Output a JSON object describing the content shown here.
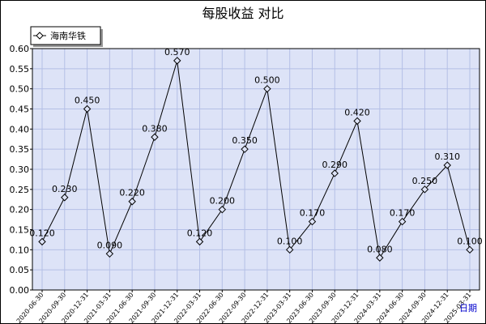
{
  "chart_data": {
    "type": "line",
    "title": "每股收益 对比",
    "xlabel": "日期",
    "ylabel": "",
    "ylim": [
      0,
      0.6
    ],
    "ytick_step": 0.05,
    "grid": true,
    "legend_position": "top-left",
    "categories": [
      "2020-06-30",
      "2020-09-30",
      "2020-12-31",
      "2021-03-31",
      "2021-06-30",
      "2021-09-30",
      "2021-12-31",
      "2022-03-31",
      "2022-06-30",
      "2022-09-30",
      "2022-12-31",
      "2023-03-31",
      "2023-06-30",
      "2023-09-30",
      "2023-12-31",
      "2024-03-31",
      "2024-06-30",
      "2024-09-30",
      "2024-12-31",
      "2025-03-31"
    ],
    "series": [
      {
        "name": "海南华铁",
        "values": [
          0.12,
          0.23,
          0.45,
          0.09,
          0.22,
          0.38,
          0.57,
          0.12,
          0.2,
          0.35,
          0.5,
          0.1,
          0.17,
          0.29,
          0.42,
          0.08,
          0.17,
          0.25,
          0.31,
          0.1
        ],
        "labels": [
          "0.120",
          "0.230",
          "0.450",
          "0.090",
          "0.220",
          "0.380",
          "0.570",
          "0.120",
          "0.200",
          "0.350",
          "0.500",
          "0.100",
          "0.170",
          "0.290",
          "0.420",
          "0.080",
          "0.170",
          "0.250",
          "0.310",
          "0.100"
        ]
      }
    ],
    "colors": {
      "plot_bg": "#dde3f7",
      "grid": "#b4bfe6",
      "line": "#000000",
      "marker_fill": "#dde3f7"
    }
  }
}
